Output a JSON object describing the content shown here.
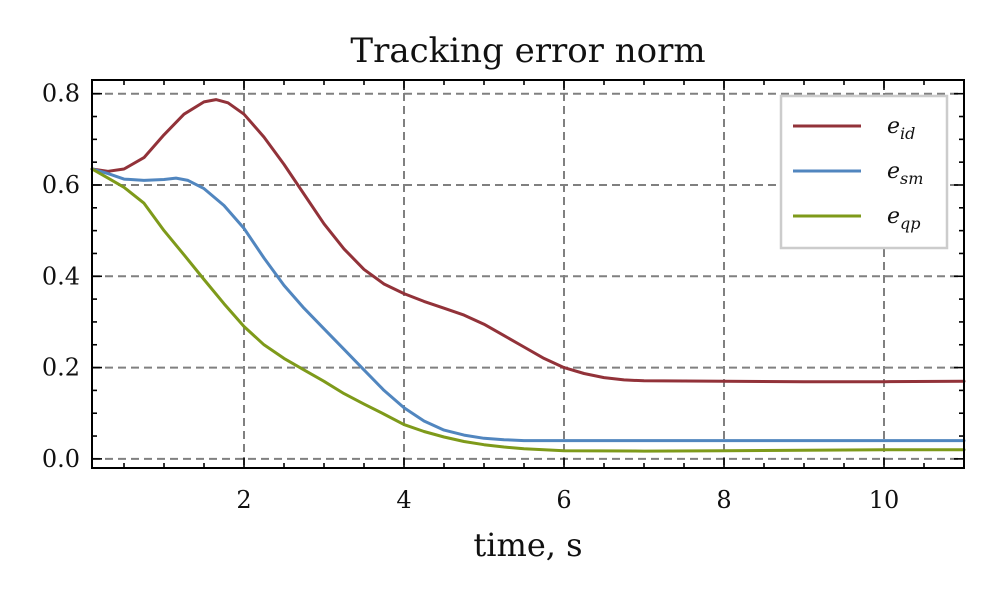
{
  "chart_data": {
    "type": "line",
    "title": "Tracking error norm",
    "xlabel": "time, s",
    "ylabel": "",
    "xlim": [
      0.1,
      11
    ],
    "ylim": [
      -0.02,
      0.83
    ],
    "xticks": [
      2,
      4,
      6,
      8,
      10
    ],
    "xtick_labels": [
      "2",
      "4",
      "6",
      "8",
      "10"
    ],
    "yticks": [
      0.0,
      0.2,
      0.4,
      0.6,
      0.8
    ],
    "ytick_labels": [
      "0.0",
      "0.2",
      "0.4",
      "0.6",
      "0.8"
    ],
    "grid": true,
    "legend_position": "top-right",
    "series": [
      {
        "name": "e_id",
        "label_main": "e",
        "label_sub": "id",
        "color": "#923239",
        "x": [
          0.1,
          0.3,
          0.5,
          0.75,
          1.0,
          1.25,
          1.5,
          1.65,
          1.8,
          2.0,
          2.25,
          2.5,
          2.75,
          3.0,
          3.25,
          3.5,
          3.75,
          4.0,
          4.25,
          4.5,
          4.75,
          5.0,
          5.25,
          5.5,
          5.75,
          6.0,
          6.25,
          6.5,
          6.75,
          7.0,
          8.0,
          9.0,
          10.0,
          11.0
        ],
        "y": [
          0.635,
          0.63,
          0.635,
          0.66,
          0.71,
          0.755,
          0.782,
          0.787,
          0.78,
          0.755,
          0.705,
          0.645,
          0.58,
          0.515,
          0.46,
          0.415,
          0.383,
          0.362,
          0.345,
          0.33,
          0.315,
          0.295,
          0.27,
          0.245,
          0.22,
          0.2,
          0.187,
          0.178,
          0.173,
          0.171,
          0.17,
          0.169,
          0.169,
          0.17
        ]
      },
      {
        "name": "e_sm",
        "label_main": "e",
        "label_sub": "sm",
        "color": "#5186bf",
        "x": [
          0.1,
          0.3,
          0.5,
          0.75,
          1.0,
          1.15,
          1.3,
          1.5,
          1.75,
          2.0,
          2.25,
          2.5,
          2.75,
          3.0,
          3.25,
          3.5,
          3.75,
          4.0,
          4.25,
          4.5,
          4.75,
          5.0,
          5.25,
          5.5,
          6.0,
          7.0,
          8.0,
          9.0,
          10.0,
          11.0
        ],
        "y": [
          0.635,
          0.625,
          0.613,
          0.61,
          0.612,
          0.615,
          0.61,
          0.592,
          0.555,
          0.505,
          0.44,
          0.38,
          0.33,
          0.285,
          0.24,
          0.195,
          0.15,
          0.112,
          0.083,
          0.063,
          0.052,
          0.045,
          0.042,
          0.04,
          0.04,
          0.04,
          0.04,
          0.04,
          0.04,
          0.04
        ]
      },
      {
        "name": "e_qp",
        "label_main": "e",
        "label_sub": "qp",
        "color": "#7e9a1a",
        "x": [
          0.1,
          0.3,
          0.5,
          0.75,
          1.0,
          1.25,
          1.5,
          1.75,
          2.0,
          2.25,
          2.5,
          2.75,
          3.0,
          3.25,
          3.5,
          3.75,
          4.0,
          4.25,
          4.5,
          4.75,
          5.0,
          5.25,
          5.5,
          6.0,
          7.0,
          8.0,
          9.0,
          10.0,
          11.0
        ],
        "y": [
          0.635,
          0.615,
          0.595,
          0.56,
          0.5,
          0.447,
          0.393,
          0.34,
          0.29,
          0.25,
          0.22,
          0.195,
          0.17,
          0.143,
          0.12,
          0.098,
          0.075,
          0.06,
          0.048,
          0.038,
          0.031,
          0.026,
          0.022,
          0.018,
          0.017,
          0.018,
          0.019,
          0.02,
          0.02
        ]
      }
    ]
  }
}
